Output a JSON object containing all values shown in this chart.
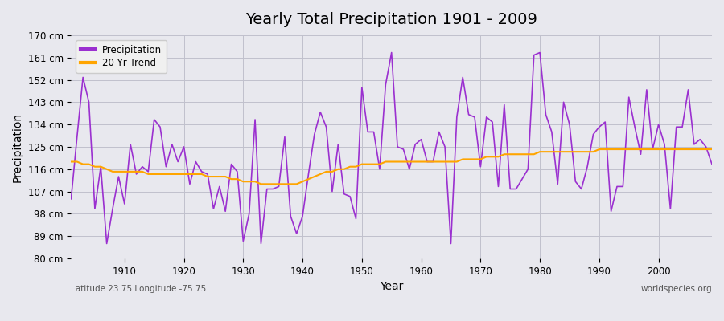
{
  "title": "Yearly Total Precipitation 1901 - 2009",
  "xlabel": "Year",
  "ylabel": "Precipitation",
  "subtitle_left": "Latitude 23.75 Longitude -75.75",
  "subtitle_right": "worldspecies.org",
  "ylim": [
    80,
    170
  ],
  "yticks": [
    80,
    89,
    98,
    107,
    116,
    125,
    134,
    143,
    152,
    161,
    170
  ],
  "ytick_labels": [
    "80 cm",
    "89 cm",
    "98 cm",
    "107 cm",
    "116 cm",
    "125 cm",
    "134 cm",
    "143 cm",
    "152 cm",
    "161 cm",
    "170 cm"
  ],
  "years": [
    1901,
    1902,
    1903,
    1904,
    1905,
    1906,
    1907,
    1908,
    1909,
    1910,
    1911,
    1912,
    1913,
    1914,
    1915,
    1916,
    1917,
    1918,
    1919,
    1920,
    1921,
    1922,
    1923,
    1924,
    1925,
    1926,
    1927,
    1928,
    1929,
    1930,
    1931,
    1932,
    1933,
    1934,
    1935,
    1936,
    1937,
    1938,
    1939,
    1940,
    1941,
    1942,
    1943,
    1944,
    1945,
    1946,
    1947,
    1948,
    1949,
    1950,
    1951,
    1952,
    1953,
    1954,
    1955,
    1956,
    1957,
    1958,
    1959,
    1960,
    1961,
    1962,
    1963,
    1964,
    1965,
    1966,
    1967,
    1968,
    1969,
    1970,
    1971,
    1972,
    1973,
    1974,
    1975,
    1976,
    1977,
    1978,
    1979,
    1980,
    1981,
    1982,
    1983,
    1984,
    1985,
    1986,
    1987,
    1988,
    1989,
    1990,
    1991,
    1992,
    1993,
    1994,
    1995,
    1996,
    1997,
    1998,
    1999,
    2000,
    2001,
    2002,
    2003,
    2004,
    2005,
    2006,
    2007,
    2008,
    2009
  ],
  "precip": [
    104,
    129,
    153,
    143,
    100,
    117,
    86,
    100,
    113,
    102,
    126,
    114,
    117,
    115,
    136,
    133,
    117,
    126,
    119,
    125,
    110,
    119,
    115,
    114,
    100,
    109,
    99,
    118,
    115,
    87,
    98,
    136,
    86,
    108,
    108,
    109,
    129,
    97,
    90,
    97,
    114,
    130,
    139,
    133,
    107,
    126,
    106,
    105,
    96,
    149,
    131,
    131,
    116,
    150,
    163,
    125,
    124,
    116,
    126,
    128,
    119,
    119,
    131,
    125,
    86,
    137,
    153,
    138,
    137,
    117,
    137,
    135,
    109,
    142,
    108,
    108,
    112,
    116,
    162,
    163,
    138,
    131,
    110,
    143,
    134,
    111,
    108,
    117,
    130,
    133,
    135,
    99,
    109,
    109,
    145,
    133,
    122,
    148,
    124,
    134,
    126,
    100,
    133,
    133,
    148,
    126,
    128,
    125,
    118
  ],
  "trend": [
    119,
    119,
    118,
    118,
    117,
    117,
    116,
    115,
    115,
    115,
    115,
    115,
    115,
    114,
    114,
    114,
    114,
    114,
    114,
    114,
    114,
    114,
    114,
    113,
    113,
    113,
    113,
    112,
    112,
    111,
    111,
    111,
    110,
    110,
    110,
    110,
    110,
    110,
    110,
    111,
    112,
    113,
    114,
    115,
    115,
    116,
    116,
    117,
    117,
    118,
    118,
    118,
    118,
    119,
    119,
    119,
    119,
    119,
    119,
    119,
    119,
    119,
    119,
    119,
    119,
    119,
    120,
    120,
    120,
    120,
    121,
    121,
    121,
    122,
    122,
    122,
    122,
    122,
    122,
    123,
    123,
    123,
    123,
    123,
    123,
    123,
    123,
    123,
    123,
    124,
    124,
    124,
    124,
    124,
    124,
    124,
    124,
    124,
    124,
    124,
    124,
    124,
    124,
    124,
    124,
    124,
    124,
    124,
    124
  ],
  "precip_color": "#9b30d0",
  "trend_color": "#FFA500",
  "bg_color": "#e8e8ee",
  "grid_color": "#c0c0cc",
  "legend_bg": "#f0f0f0"
}
